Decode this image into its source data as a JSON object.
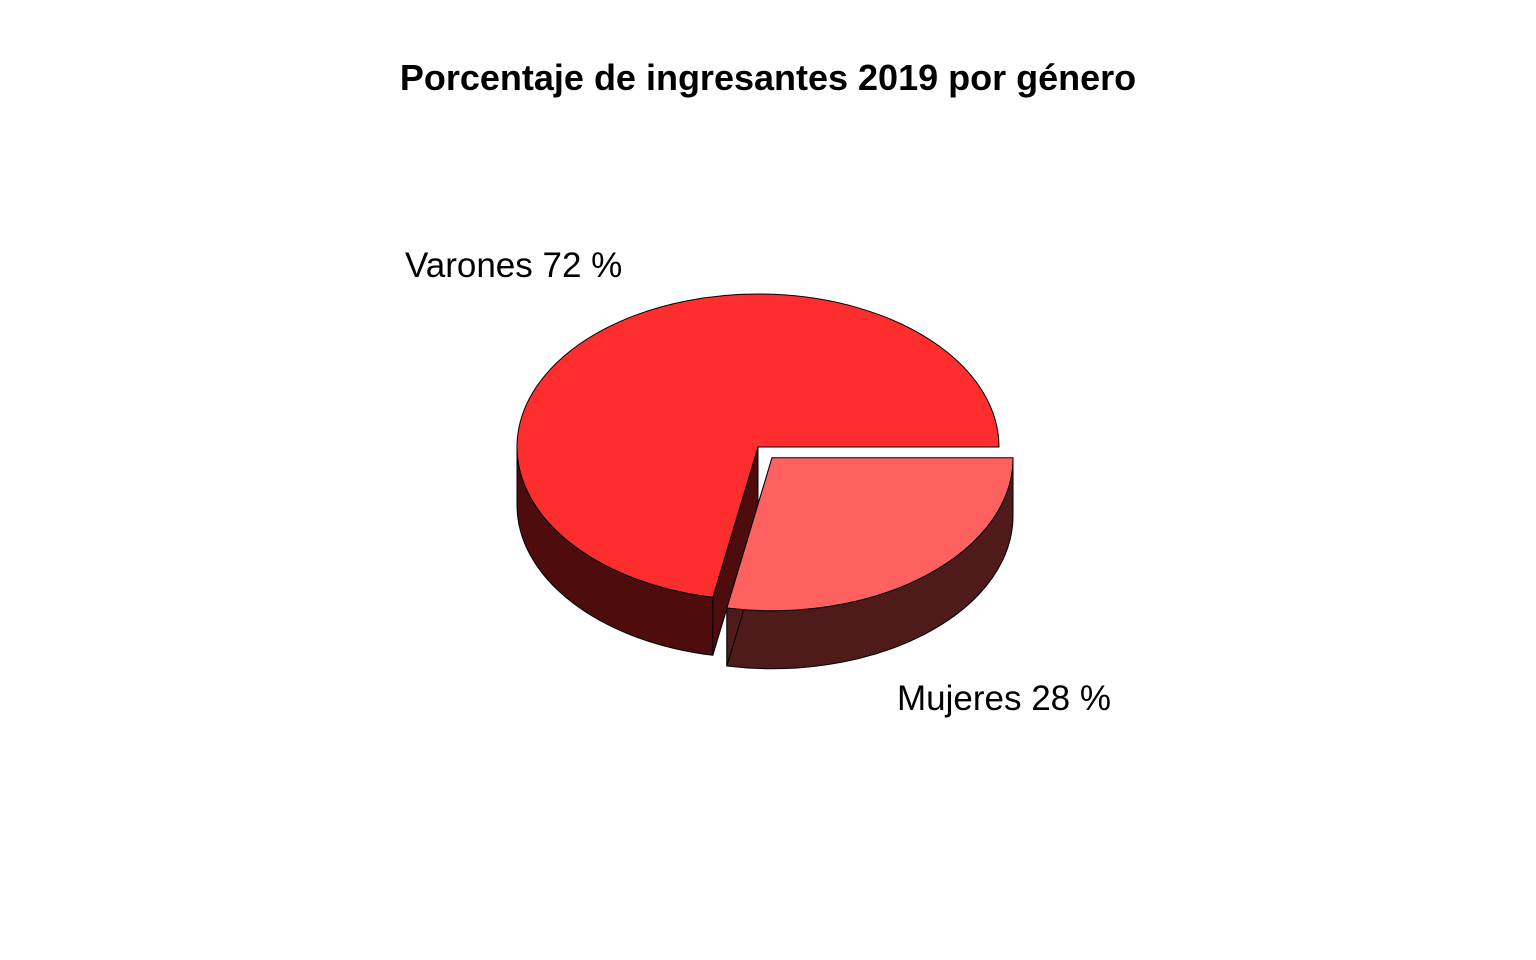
{
  "chart_data": {
    "type": "pie",
    "style": "3d-exploded",
    "title": "Porcentaje de ingresantes 2019 por género",
    "slices": [
      {
        "label": "Varones 72 %",
        "value": 72,
        "top_color": "#FF2E2E",
        "side_color": "#4E0C0C"
      },
      {
        "label": "Mujeres 28 %",
        "value": 28,
        "top_color": "#FF6161",
        "side_color": "#4E1A1A"
      }
    ],
    "legend": "none"
  }
}
